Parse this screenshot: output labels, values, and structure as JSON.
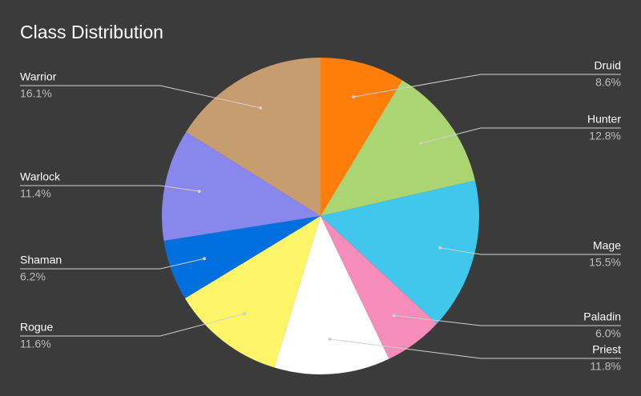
{
  "chart_data": {
    "type": "pie",
    "title": "Class Distribution",
    "categories": [
      "Druid",
      "Hunter",
      "Mage",
      "Paladin",
      "Priest",
      "Rogue",
      "Shaman",
      "Warlock",
      "Warrior"
    ],
    "values": [
      8.6,
      12.8,
      15.5,
      6.0,
      11.8,
      11.6,
      6.2,
      11.4,
      16.1
    ],
    "value_labels": [
      "8.6%",
      "12.8%",
      "15.5%",
      "6.0%",
      "11.8%",
      "11.6%",
      "6.2%",
      "11.4%",
      "16.1%"
    ],
    "colors": [
      "#ff7d0a",
      "#abd473",
      "#40c7eb",
      "#f58cba",
      "#ffffff",
      "#fff569",
      "#0070de",
      "#8787ed",
      "#c79c6e"
    ]
  }
}
